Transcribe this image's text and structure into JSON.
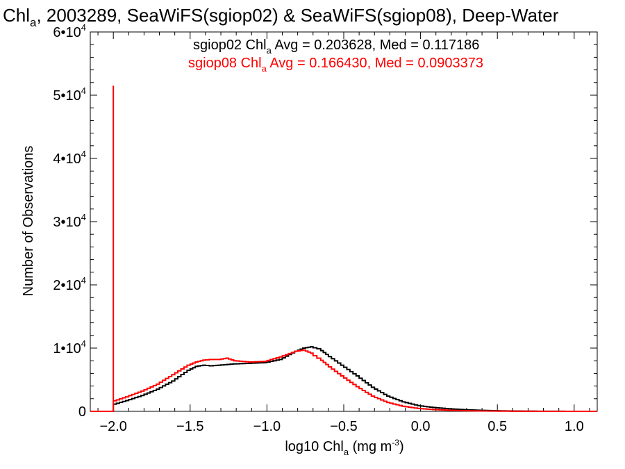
{
  "chart_data": {
    "type": "line",
    "title": {
      "main": "Chl",
      "sub": "a",
      "rest": ", 2003289, SeaWiFS(sgiop02) & SeaWiFS(sgiop08), Deep-Water"
    },
    "xlabel": {
      "main": "log10 Chl",
      "sub": "a",
      "rest": " (mg m",
      "sup": "-3",
      "end": ")"
    },
    "ylabel": "Number of Observations",
    "xlim": [
      -2.15,
      1.15
    ],
    "ylim": [
      0,
      60000
    ],
    "x_ticks": [
      {
        "value": -2.0,
        "label": "−2.0"
      },
      {
        "value": -1.5,
        "label": "−1.5"
      },
      {
        "value": -1.0,
        "label": "−1.0"
      },
      {
        "value": -0.5,
        "label": "−0.5"
      },
      {
        "value": 0.0,
        "label": "0.0"
      },
      {
        "value": 0.5,
        "label": "0.5"
      },
      {
        "value": 1.0,
        "label": "1.0"
      }
    ],
    "y_ticks": [
      {
        "value": 0,
        "label": "0"
      },
      {
        "value": 10000,
        "mant": "1•10",
        "exp": "4"
      },
      {
        "value": 20000,
        "mant": "2•10",
        "exp": "4"
      },
      {
        "value": 30000,
        "mant": "3•10",
        "exp": "4"
      },
      {
        "value": 40000,
        "mant": "4•10",
        "exp": "4"
      },
      {
        "value": 50000,
        "mant": "5•10",
        "exp": "4"
      },
      {
        "value": 60000,
        "mant": "6•10",
        "exp": "4"
      }
    ],
    "annotations": [
      {
        "color": "#000000",
        "pre": "sgiop02 Chl",
        "sub": "a",
        "post": " Avg = 0.203628, Med = 0.117186"
      },
      {
        "color": "#ff0000",
        "pre": "sgiop08 Chl",
        "sub": "a",
        "post": " Avg = 0.166430, Med = 0.0903373"
      }
    ],
    "series": [
      {
        "color": "#000000",
        "x": [
          -2.15,
          -2.0,
          -2.0,
          -1.9,
          -1.8,
          -1.7,
          -1.6,
          -1.5,
          -1.45,
          -1.4,
          -1.35,
          -1.3,
          -1.2,
          -1.1,
          -1.0,
          -0.9,
          -0.8,
          -0.75,
          -0.7,
          -0.65,
          -0.6,
          -0.5,
          -0.4,
          -0.3,
          -0.2,
          -0.1,
          0.0,
          0.1,
          0.2,
          0.3,
          0.4,
          0.5,
          0.6,
          0.7,
          0.8,
          1.0,
          1.15
        ],
        "y": [
          0,
          0,
          1000,
          1700,
          2500,
          3500,
          4800,
          6500,
          7100,
          7300,
          7200,
          7300,
          7500,
          7600,
          7700,
          8200,
          9500,
          10000,
          10200,
          9900,
          9000,
          7300,
          5600,
          3800,
          2400,
          1500,
          900,
          600,
          400,
          260,
          160,
          90,
          50,
          30,
          15,
          5,
          0
        ]
      },
      {
        "color": "#ff0000",
        "x": [
          -2.15,
          -2.0,
          -2.0,
          -2.0,
          -2.0,
          -1.9,
          -1.8,
          -1.7,
          -1.6,
          -1.5,
          -1.45,
          -1.4,
          -1.35,
          -1.3,
          -1.25,
          -1.2,
          -1.1,
          -1.0,
          -0.9,
          -0.8,
          -0.75,
          -0.7,
          -0.65,
          -0.6,
          -0.5,
          -0.4,
          -0.3,
          -0.2,
          -0.1,
          0.0,
          0.1,
          0.2,
          0.3,
          0.4,
          0.5,
          0.6,
          0.7,
          0.8,
          1.0,
          1.15
        ],
        "y": [
          0,
          0,
          51500,
          0,
          1500,
          2300,
          3200,
          4300,
          5800,
          7300,
          7800,
          8100,
          8200,
          8200,
          8400,
          8000,
          7800,
          7900,
          8600,
          9500,
          9700,
          9200,
          8400,
          7400,
          5600,
          3900,
          2400,
          1400,
          800,
          450,
          280,
          170,
          100,
          60,
          35,
          20,
          10,
          5,
          2,
          0
        ]
      }
    ],
    "grid": false,
    "legend": "none"
  }
}
